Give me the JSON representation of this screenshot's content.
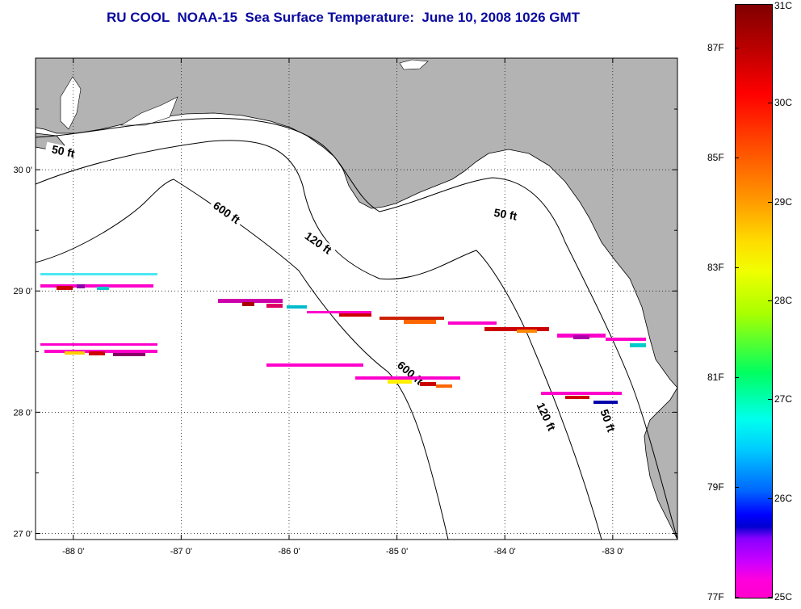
{
  "title": "RU COOL  NOAA-15  Sea Surface Temperature:  June 10, 2008 1026 GMT",
  "map": {
    "lon_range": [
      -88.35,
      -82.4
    ],
    "lat_range": [
      26.95,
      30.92
    ],
    "lon_ticks": [
      {
        "value": -88,
        "label": "-88 0'"
      },
      {
        "value": -87,
        "label": "-87 0'"
      },
      {
        "value": -86,
        "label": "-86 0'"
      },
      {
        "value": -85,
        "label": "-85 0'"
      },
      {
        "value": -84,
        "label": "-84 0'"
      },
      {
        "value": -83,
        "label": "-83 0'"
      }
    ],
    "lat_ticks": [
      {
        "value": 30,
        "label": "30 0'"
      },
      {
        "value": 29,
        "label": "29 0'"
      },
      {
        "value": 28,
        "label": "28 0'"
      },
      {
        "value": 27,
        "label": "27 0'"
      }
    ],
    "grid": "dotted",
    "land_color": "#b3b3b3",
    "water_color": "#ffffff",
    "contour_labels": [
      {
        "text": "50 ft",
        "lon": -88.1,
        "lat": 30.12
      },
      {
        "text": "600 ft",
        "lon": -86.6,
        "lat": 29.62
      },
      {
        "text": "120 ft",
        "lon": -85.75,
        "lat": 29.37
      },
      {
        "text": "50 ft",
        "lon": -84.0,
        "lat": 29.6
      },
      {
        "text": "600 ft",
        "lon": -84.9,
        "lat": 28.3
      },
      {
        "text": "120 ft",
        "lon": -83.65,
        "lat": 27.95
      },
      {
        "text": "50 ft",
        "lon": -83.08,
        "lat": 27.92
      }
    ]
  },
  "colorbar": {
    "celsius": [
      {
        "label": "31C",
        "pos": 0.0
      },
      {
        "label": "30C",
        "pos": 0.1667
      },
      {
        "label": "29C",
        "pos": 0.3333
      },
      {
        "label": "28C",
        "pos": 0.5
      },
      {
        "label": "27C",
        "pos": 0.6667
      },
      {
        "label": "26C",
        "pos": 0.8333
      },
      {
        "label": "25C",
        "pos": 1.0
      }
    ],
    "fahrenheit": [
      {
        "label": "87F",
        "pos": 0.074
      },
      {
        "label": "85F",
        "pos": 0.259
      },
      {
        "label": "83F",
        "pos": 0.444
      },
      {
        "label": "81F",
        "pos": 0.63
      },
      {
        "label": "79F",
        "pos": 0.815
      },
      {
        "label": "77F",
        "pos": 1.0
      }
    ]
  }
}
